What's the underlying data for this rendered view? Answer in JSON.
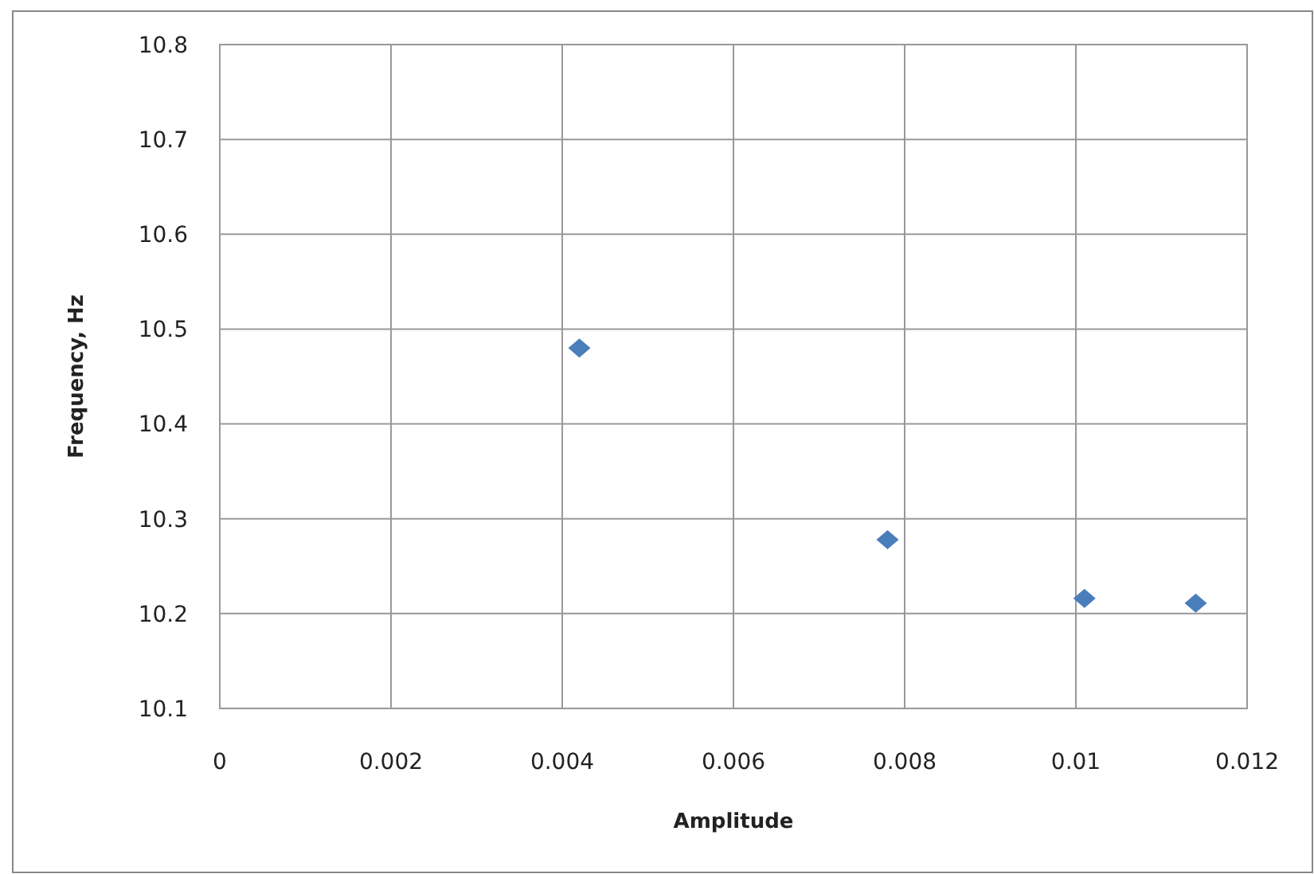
{
  "chart_data": {
    "type": "scatter",
    "xlabel": "Amplitude",
    "ylabel": "Frequency, Hz",
    "x": [
      0.0042,
      0.0078,
      0.0101,
      0.0114
    ],
    "series": [
      {
        "color": "#4a7ebb",
        "values": [
          10.48,
          10.278,
          10.216,
          10.211
        ]
      }
    ],
    "xlim": [
      0,
      0.012
    ],
    "xticks": [
      0,
      0.002,
      0.004,
      0.006,
      0.008,
      0.01,
      0.012
    ],
    "ylim": [
      10.1,
      10.8
    ],
    "yticks": [
      10.1,
      10.2,
      10.3,
      10.4,
      10.5,
      10.6,
      10.7,
      10.8
    ],
    "grid": true,
    "marker": "diamond"
  }
}
